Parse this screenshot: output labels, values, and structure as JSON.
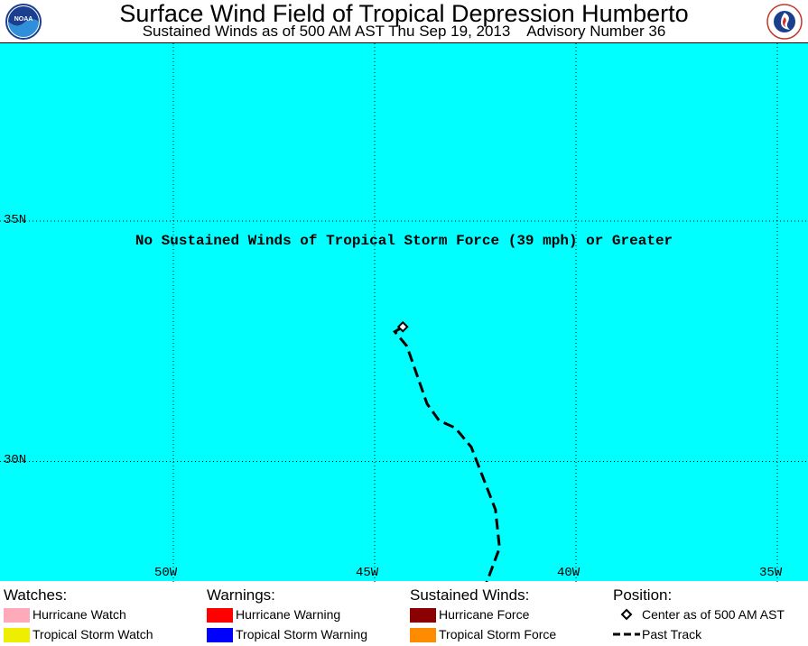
{
  "header": {
    "title": "Surface Wind Field of Tropical Depression Humberto",
    "subtitle": "Sustained Winds as of 500 AM AST Thu Sep 19, 2013    Advisory Number 36",
    "left_logo_text": "NOAA",
    "right_logo_text": "NATIONAL WEATHER SERVICE"
  },
  "map": {
    "background_color": "#00ffff",
    "notice": "No Sustained Winds of Tropical Storm Force (39 mph) or Greater",
    "lat_labels": [
      "35N",
      "30N"
    ],
    "lon_labels": [
      "50W",
      "45W",
      "40W",
      "35W"
    ],
    "gridlines": true,
    "storm_center": {
      "lat": 32.8,
      "lon": 44.3
    },
    "past_track": [
      {
        "lat": 27.3,
        "lon": 42.3
      },
      {
        "lat": 28.2,
        "lon": 41.9
      },
      {
        "lat": 29.0,
        "lon": 42.0
      },
      {
        "lat": 30.3,
        "lon": 42.6
      },
      {
        "lat": 30.7,
        "lon": 43.0
      },
      {
        "lat": 30.85,
        "lon": 43.4
      },
      {
        "lat": 31.2,
        "lon": 43.7
      },
      {
        "lat": 32.4,
        "lon": 44.2
      },
      {
        "lat": 32.7,
        "lon": 44.5
      },
      {
        "lat": 32.8,
        "lon": 44.3
      }
    ]
  },
  "legend": {
    "watches": {
      "heading": "Watches:",
      "items": [
        {
          "label": "Hurricane Watch",
          "color": "#ffaabb"
        },
        {
          "label": "Tropical Storm Watch",
          "color": "#eeee00"
        }
      ]
    },
    "warnings": {
      "heading": "Warnings:",
      "items": [
        {
          "label": "Hurricane Warning",
          "color": "#ff0000"
        },
        {
          "label": "Tropical Storm Warning",
          "color": "#0000ff"
        }
      ]
    },
    "winds": {
      "heading": "Sustained Winds:",
      "items": [
        {
          "label": "Hurricane Force",
          "color": "#8b0000"
        },
        {
          "label": "Tropical Storm Force",
          "color": "#ff8c00"
        }
      ]
    },
    "position": {
      "heading": "Position:",
      "items": [
        {
          "label": "Center as of 500 AM AST",
          "icon": "diamond-icon"
        },
        {
          "label": "Past Track",
          "icon": "dashed-line-icon"
        }
      ]
    }
  }
}
